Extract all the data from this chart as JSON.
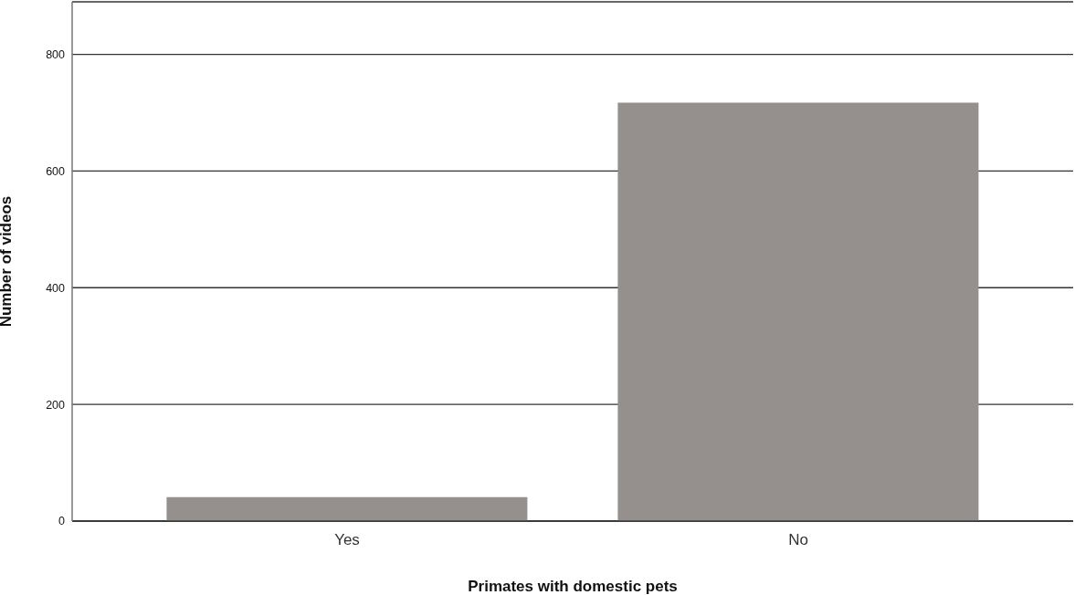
{
  "chart_data": {
    "type": "bar",
    "xlabel": "Primates with domestic pets",
    "ylabel": "Number of videos",
    "categories": [
      "Yes",
      "No"
    ],
    "values": [
      41,
      717
    ],
    "color": "#958f8e",
    "ylim": [
      0,
      890
    ],
    "yticks": [
      0,
      200,
      400,
      600,
      800
    ],
    "grid": "y"
  }
}
